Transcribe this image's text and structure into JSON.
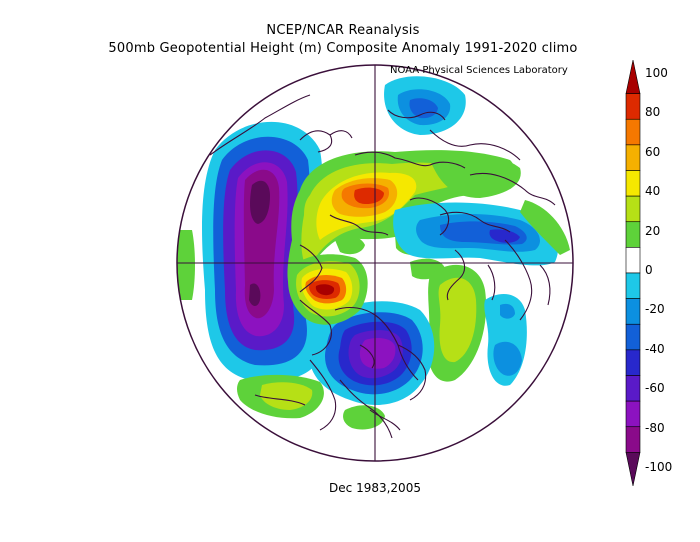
{
  "header": {
    "title_line1": "NCEP/NCAR Reanalysis",
    "title_line2": "500mb Geopotential Height (m) Composite Anomaly 1991-2020 climo",
    "credit": "NOAA Physical Sciences Laboratory"
  },
  "caption": "Dec 1983,2005",
  "colorbar": {
    "labels": [
      "100",
      "80",
      "60",
      "40",
      "20",
      "0",
      "-20",
      "-40",
      "-60",
      "-80",
      "-100"
    ],
    "colors": [
      "#a80000",
      "#dd2a00",
      "#f57800",
      "#f5b000",
      "#f5e800",
      "#b6e016",
      "#5ed23a",
      "#ffffff",
      "#1ec8e8",
      "#0c90e0",
      "#1260d8",
      "#2828cc",
      "#5a1ac8",
      "#8c12c0",
      "#8a0a8a",
      "#5a0a5a"
    ]
  },
  "map": {
    "projection": "north-polar-stereographic",
    "palette": {
      "neg100": "#5a0a5a",
      "neg80": "#8a0a8a",
      "neg70": "#8c12c0",
      "neg60": "#5a1ac8",
      "neg40": "#2828cc",
      "neg30": "#1260d8",
      "neg20": "#0c90e0",
      "neg10": "#1ec8e8",
      "pos10": "#5ed23a",
      "pos20": "#b6e016",
      "pos40": "#f5e800",
      "pos50": "#f5b000",
      "pos60": "#f57800",
      "pos80": "#dd2a00",
      "pos100": "#a80000",
      "coast": "#3a0f3a"
    }
  }
}
